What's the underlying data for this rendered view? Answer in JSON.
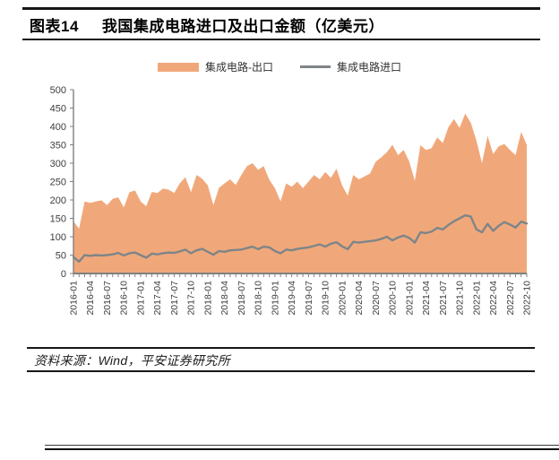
{
  "header": {
    "figure_label": "图表14",
    "title": "我国集成电路进口及出口金额（亿美元）"
  },
  "legend": {
    "items": [
      {
        "label": "集成电路-出口",
        "type": "area",
        "color": "#F0A87B"
      },
      {
        "label": "集成电路进口",
        "type": "line",
        "color": "#7E8588"
      }
    ]
  },
  "footer": {
    "source": "资料来源：Wind，平安证券研究所"
  },
  "colors": {
    "area_fill": "#F0A87B",
    "line_stroke": "#7E8588",
    "axis": "#808080",
    "tick_label": "#3d3d3d"
  },
  "chart_data": {
    "type": "area",
    "title": "我国集成电路进口及出口金额（亿美元）",
    "ylabel": "",
    "xlabel": "",
    "ylim": [
      0,
      500
    ],
    "ytick_step": 50,
    "xtick_every_months": 3,
    "grid": false,
    "legend_position": "top",
    "x": [
      "2016-01",
      "2016-02",
      "2016-03",
      "2016-04",
      "2016-05",
      "2016-06",
      "2016-07",
      "2016-08",
      "2016-09",
      "2016-10",
      "2016-11",
      "2016-12",
      "2017-01",
      "2017-02",
      "2017-03",
      "2017-04",
      "2017-05",
      "2017-06",
      "2017-07",
      "2017-08",
      "2017-09",
      "2017-10",
      "2017-11",
      "2017-12",
      "2018-01",
      "2018-02",
      "2018-03",
      "2018-04",
      "2018-05",
      "2018-06",
      "2018-07",
      "2018-08",
      "2018-09",
      "2018-10",
      "2018-11",
      "2018-12",
      "2019-01",
      "2019-02",
      "2019-03",
      "2019-04",
      "2019-05",
      "2019-06",
      "2019-07",
      "2019-08",
      "2019-09",
      "2019-10",
      "2019-11",
      "2019-12",
      "2020-01",
      "2020-02",
      "2020-03",
      "2020-04",
      "2020-05",
      "2020-06",
      "2020-07",
      "2020-08",
      "2020-09",
      "2020-10",
      "2020-11",
      "2020-12",
      "2021-01",
      "2021-02",
      "2021-03",
      "2021-04",
      "2021-05",
      "2021-06",
      "2021-07",
      "2021-08",
      "2021-09",
      "2021-10",
      "2021-11",
      "2021-12",
      "2022-01",
      "2022-02",
      "2022-03",
      "2022-04",
      "2022-05",
      "2022-06",
      "2022-07",
      "2022-08",
      "2022-09",
      "2022-10"
    ],
    "series": [
      {
        "name": "集成电路-出口",
        "type": "area",
        "color": "#F0A87B",
        "values": [
          142,
          122,
          196,
          192,
          196,
          199,
          186,
          203,
          207,
          180,
          221,
          226,
          196,
          183,
          222,
          219,
          231,
          228,
          219,
          245,
          262,
          221,
          268,
          258,
          240,
          186,
          233,
          245,
          256,
          241,
          268,
          292,
          300,
          282,
          292,
          255,
          232,
          196,
          245,
          236,
          250,
          232,
          250,
          268,
          256,
          276,
          260,
          285,
          240,
          212,
          268,
          256,
          264,
          272,
          304,
          316,
          330,
          350,
          322,
          336,
          305,
          252,
          349,
          336,
          341,
          370,
          355,
          398,
          420,
          396,
          435,
          410,
          362,
          300,
          374,
          325,
          346,
          352,
          336,
          322,
          385,
          350
        ]
      },
      {
        "name": "集成电路进口",
        "type": "line",
        "color": "#7E8588",
        "values": [
          45,
          32,
          50,
          48,
          50,
          49,
          50,
          52,
          56,
          49,
          55,
          57,
          50,
          43,
          54,
          52,
          55,
          57,
          56,
          60,
          65,
          55,
          63,
          67,
          59,
          51,
          61,
          59,
          63,
          64,
          65,
          69,
          73,
          66,
          73,
          71,
          61,
          55,
          65,
          63,
          67,
          69,
          71,
          75,
          79,
          73,
          81,
          85,
          74,
          66,
          86,
          84,
          86,
          88,
          90,
          94,
          100,
          90,
          98,
          103,
          97,
          84,
          112,
          110,
          114,
          124,
          120,
          132,
          142,
          150,
          158,
          155,
          120,
          112,
          135,
          116,
          130,
          140,
          133,
          125,
          141,
          136
        ]
      }
    ]
  }
}
